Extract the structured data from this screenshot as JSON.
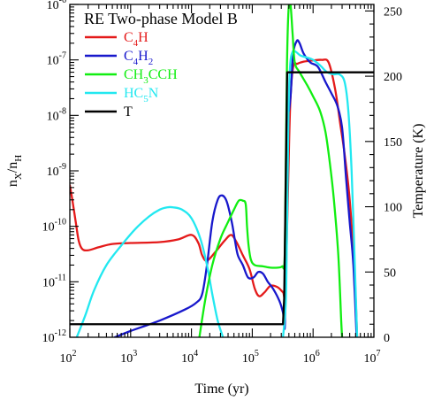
{
  "chart_data": {
    "type": "line",
    "title": "RE Two-phase Model B",
    "xlabel": "Time (yr)",
    "ylabel": {
      "base": "n",
      "sub1": "X",
      "mid": "/n",
      "sub2": "H"
    },
    "y2label": "Temperature (K)",
    "x_scale": "log",
    "y_scale": "log",
    "xlim": [
      100,
      10000000
    ],
    "ylim": [
      1e-12,
      1e-06
    ],
    "y2lim": [
      0,
      255
    ],
    "x_ticks": [
      {
        "value": 100,
        "base": "10",
        "exp": "2"
      },
      {
        "value": 1000,
        "base": "10",
        "exp": "3"
      },
      {
        "value": 10000,
        "base": "10",
        "exp": "4"
      },
      {
        "value": 100000,
        "base": "10",
        "exp": "5"
      },
      {
        "value": 1000000,
        "base": "10",
        "exp": "6"
      },
      {
        "value": 10000000,
        "base": "10",
        "exp": "7"
      }
    ],
    "y_ticks": [
      {
        "value": 1e-12,
        "base": "10",
        "exp": "-12"
      },
      {
        "value": 1e-11,
        "base": "10",
        "exp": "-11"
      },
      {
        "value": 1e-10,
        "base": "10",
        "exp": "-10"
      },
      {
        "value": 1e-09,
        "base": "10",
        "exp": "-9"
      },
      {
        "value": 1e-08,
        "base": "10",
        "exp": "-8"
      },
      {
        "value": 1e-07,
        "base": "10",
        "exp": "-7"
      },
      {
        "value": 1e-06,
        "base": "10",
        "exp": "-6"
      }
    ],
    "y2_ticks": [
      "0",
      "50",
      "100",
      "150",
      "200",
      "250"
    ],
    "legend_position": "top-left",
    "series": [
      {
        "name": "C4H",
        "label_parts": [
          {
            "t": "C"
          },
          {
            "t": "4",
            "sub": true
          },
          {
            "t": "H"
          }
        ],
        "color": "#e41a1a",
        "axis": "left",
        "points": [
          [
            100,
            5.5e-10
          ],
          [
            110,
            3e-10
          ],
          [
            125,
            1.2e-10
          ],
          [
            140,
            5.5e-11
          ],
          [
            160,
            3.9e-11
          ],
          [
            200,
            3.7e-11
          ],
          [
            300,
            4.2e-11
          ],
          [
            500,
            4.8e-11
          ],
          [
            1000,
            5e-11
          ],
          [
            3000,
            5.2e-11
          ],
          [
            6000,
            5.8e-11
          ],
          [
            10000,
            7e-11
          ],
          [
            13000,
            5e-11
          ],
          [
            15000,
            3e-11
          ],
          [
            18000,
            2.4e-11
          ],
          [
            25000,
            3.5e-11
          ],
          [
            35000,
            5.5e-11
          ],
          [
            45000,
            7e-11
          ],
          [
            55000,
            5.2e-11
          ],
          [
            70000,
            3e-11
          ],
          [
            90000,
            1.7e-11
          ],
          [
            110000,
            7.5e-12
          ],
          [
            130000,
            5.5e-12
          ],
          [
            160000,
            6.5e-12
          ],
          [
            200000,
            8.5e-12
          ],
          [
            260000,
            8e-12
          ],
          [
            320000,
            6.5e-12
          ],
          [
            350000,
            6.2e-12
          ],
          [
            380000,
            2e-10
          ],
          [
            420000,
            1.5e-08
          ],
          [
            470000,
            7.5e-08
          ],
          [
            550000,
            8.5e-08
          ],
          [
            700000,
            9.3e-08
          ],
          [
            1000000,
            9.8e-08
          ],
          [
            1400000,
            1e-07
          ],
          [
            1800000,
            9e-08
          ],
          [
            2300000,
            3e-08
          ],
          [
            2800000,
            7e-09
          ],
          [
            3300000,
            2e-09
          ],
          [
            4000000,
            3e-10
          ],
          [
            4800000,
            1.5e-11
          ],
          [
            5300000,
            1e-12
          ]
        ]
      },
      {
        "name": "C4H2",
        "label_parts": [
          {
            "t": "C"
          },
          {
            "t": "4",
            "sub": true
          },
          {
            "t": "H"
          },
          {
            "t": "2",
            "sub": true
          }
        ],
        "color": "#1818cc",
        "axis": "left",
        "points": [
          [
            550,
            1e-12
          ],
          [
            1000,
            1.3e-12
          ],
          [
            3000,
            2e-12
          ],
          [
            8000,
            3.2e-12
          ],
          [
            12000,
            4.2e-12
          ],
          [
            15000,
            6e-12
          ],
          [
            18000,
            2e-11
          ],
          [
            22000,
            1.2e-10
          ],
          [
            27000,
            3e-10
          ],
          [
            32000,
            3.6e-10
          ],
          [
            38000,
            2.8e-10
          ],
          [
            46000,
            1.2e-10
          ],
          [
            52000,
            5.5e-11
          ],
          [
            58000,
            3e-11
          ],
          [
            70000,
            2e-11
          ],
          [
            85000,
            1.2e-11
          ],
          [
            105000,
            1.2e-11
          ],
          [
            125000,
            1.5e-11
          ],
          [
            150000,
            1.4e-11
          ],
          [
            180000,
            1e-11
          ],
          [
            220000,
            7.5e-12
          ],
          [
            280000,
            4.5e-12
          ],
          [
            320000,
            2.8e-12
          ],
          [
            345000,
            1.8e-12
          ],
          [
            360000,
            1.8e-10
          ],
          [
            380000,
            1.2e-08
          ],
          [
            400000,
            1.2e-08
          ],
          [
            430000,
            2.5e-08
          ],
          [
            470000,
            1.3e-07
          ],
          [
            540000,
            2.2e-07
          ],
          [
            600000,
            2e-07
          ],
          [
            700000,
            1.3e-07
          ],
          [
            900000,
            9e-08
          ],
          [
            1200000,
            7.5e-08
          ],
          [
            1600000,
            4e-08
          ],
          [
            2000000,
            2.5e-08
          ],
          [
            2500000,
            1.5e-08
          ],
          [
            3000000,
            6e-09
          ],
          [
            3500000,
            7e-10
          ],
          [
            4000000,
            1.2e-10
          ],
          [
            4600000,
            2e-11
          ],
          [
            5200000,
            1e-12
          ]
        ]
      },
      {
        "name": "CH3CCH",
        "label_parts": [
          {
            "t": "CH"
          },
          {
            "t": "3",
            "sub": true
          },
          {
            "t": "CCH"
          }
        ],
        "color": "#11ee11",
        "axis": "left",
        "points": [
          [
            13500,
            1e-12
          ],
          [
            17000,
            5e-12
          ],
          [
            22000,
            2e-11
          ],
          [
            30000,
            6e-11
          ],
          [
            40000,
            1.2e-10
          ],
          [
            50000,
            2e-10
          ],
          [
            60000,
            2.9e-10
          ],
          [
            70000,
            2.9e-10
          ],
          [
            78000,
            2.5e-10
          ],
          [
            82000,
            1e-10
          ],
          [
            87000,
            4.5e-11
          ],
          [
            95000,
            2.5e-11
          ],
          [
            110000,
            2e-11
          ],
          [
            150000,
            1.9e-11
          ],
          [
            200000,
            1.8e-11
          ],
          [
            260000,
            1.8e-11
          ],
          [
            310000,
            1.9e-11
          ],
          [
            340000,
            2.5e-11
          ],
          [
            355000,
            1e-09
          ],
          [
            372000,
            8e-08
          ],
          [
            395000,
            8e-07
          ],
          [
            425000,
            1e-06
          ],
          [
            460000,
            3e-07
          ],
          [
            500000,
            9e-08
          ],
          [
            600000,
            6e-08
          ],
          [
            800000,
            3.5e-08
          ],
          [
            1000000,
            2.2e-08
          ],
          [
            1300000,
            1.2e-08
          ],
          [
            1600000,
            5e-09
          ],
          [
            1900000,
            1.3e-09
          ],
          [
            2200000,
            3e-10
          ],
          [
            2600000,
            3e-11
          ],
          [
            2900000,
            2e-12
          ],
          [
            3000000,
            1e-12
          ]
        ]
      },
      {
        "name": "HC5N",
        "label_parts": [
          {
            "t": "HC"
          },
          {
            "t": "5",
            "sub": true
          },
          {
            "t": "N"
          }
        ],
        "color": "#22e8f0",
        "axis": "left",
        "points": [
          [
            130,
            1e-12
          ],
          [
            180,
            2.5e-12
          ],
          [
            250,
            7e-12
          ],
          [
            400,
            2e-11
          ],
          [
            700,
            4.5e-11
          ],
          [
            1200,
            9e-11
          ],
          [
            2000,
            1.5e-10
          ],
          [
            3000,
            2e-10
          ],
          [
            4000,
            2.2e-10
          ],
          [
            5000,
            2.2e-10
          ],
          [
            7000,
            2e-10
          ],
          [
            10000,
            1.4e-10
          ],
          [
            14000,
            6e-11
          ],
          [
            18000,
            2e-11
          ],
          [
            22000,
            6e-12
          ],
          [
            27000,
            2e-12
          ],
          [
            33000,
            1e-12
          ]
        ]
      },
      {
        "name": "HC5N (late)",
        "hide_from_legend": true,
        "color": "#22e8f0",
        "axis": "left",
        "points": [
          [
            320000,
            1e-12
          ],
          [
            355000,
            4e-12
          ],
          [
            370000,
            5e-11
          ],
          [
            395000,
            1.2e-08
          ],
          [
            420000,
            8e-08
          ],
          [
            460000,
            1.4e-07
          ],
          [
            520000,
            1.4e-07
          ],
          [
            620000,
            1.2e-07
          ],
          [
            800000,
            1.1e-07
          ],
          [
            1000000,
            1e-07
          ],
          [
            1300000,
            8e-08
          ],
          [
            1700000,
            6e-08
          ],
          [
            2200000,
            5.5e-08
          ],
          [
            2700000,
            5.5e-08
          ],
          [
            3300000,
            4e-08
          ],
          [
            3800000,
            1.2e-08
          ],
          [
            4300000,
            1e-09
          ],
          [
            4800000,
            3e-11
          ],
          [
            5300000,
            1e-12
          ]
        ]
      },
      {
        "name": "T",
        "label_parts": [
          {
            "t": "T"
          }
        ],
        "color": "#000000",
        "axis": "right",
        "points": [
          [
            100,
            10
          ],
          [
            320000,
            10
          ],
          [
            335000,
            30
          ],
          [
            355000,
            120
          ],
          [
            375000,
            203
          ],
          [
            400000,
            203
          ],
          [
            10000000,
            203
          ]
        ]
      }
    ]
  }
}
